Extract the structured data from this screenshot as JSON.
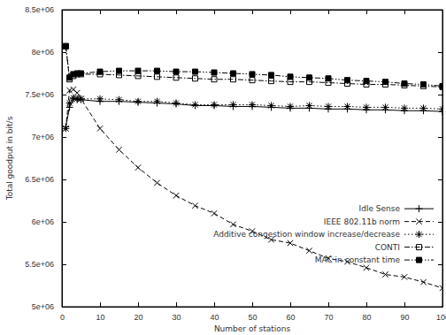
{
  "chart_data": {
    "type": "line",
    "x_label": "Number of stations",
    "y_label": "Total goodput in bit/s",
    "x": [
      1,
      2,
      3,
      4,
      5,
      10,
      15,
      20,
      25,
      30,
      35,
      40,
      45,
      50,
      55,
      60,
      65,
      70,
      75,
      80,
      85,
      90,
      95,
      100
    ],
    "series": [
      {
        "name": "Idle Sense",
        "color": "#000000",
        "marker": "plus",
        "line_style": "solid",
        "values": [
          7120000,
          7350000,
          7450000,
          7440000,
          7440000,
          7420000,
          7420000,
          7410000,
          7400000,
          7390000,
          7370000,
          7370000,
          7360000,
          7360000,
          7350000,
          7340000,
          7340000,
          7330000,
          7330000,
          7320000,
          7320000,
          7310000,
          7310000,
          7300000
        ]
      },
      {
        "name": "IEEE 802.11b norm",
        "color": "#000000",
        "marker": "cross",
        "line_style": "dashed",
        "values": [
          7100000,
          7550000,
          7560000,
          7520000,
          7450000,
          7100000,
          6850000,
          6640000,
          6460000,
          6310000,
          6190000,
          6100000,
          5970000,
          5890000,
          5790000,
          5750000,
          5660000,
          5570000,
          5530000,
          5460000,
          5380000,
          5350000,
          5290000,
          5220000
        ]
      },
      {
        "name": "Additive congestion window increase/decrease",
        "color": "#000000",
        "marker": "star",
        "line_style": "dotted",
        "values": [
          7100000,
          7400000,
          7460000,
          7450000,
          7450000,
          7450000,
          7440000,
          7420000,
          7420000,
          7400000,
          7380000,
          7380000,
          7380000,
          7380000,
          7370000,
          7360000,
          7370000,
          7360000,
          7360000,
          7350000,
          7350000,
          7340000,
          7340000,
          7330000
        ]
      },
      {
        "name": "CONTI",
        "color": "#000000",
        "marker": "square-open",
        "line_style": "dashdot",
        "values": [
          8070000,
          7680000,
          7720000,
          7740000,
          7740000,
          7740000,
          7730000,
          7720000,
          7710000,
          7700000,
          7690000,
          7680000,
          7680000,
          7670000,
          7660000,
          7650000,
          7650000,
          7640000,
          7630000,
          7620000,
          7620000,
          7610000,
          7600000,
          7590000
        ]
      },
      {
        "name": "MAC in constant time",
        "color": "#000000",
        "marker": "square",
        "line_style": "dashdotdot",
        "values": [
          8070000,
          7700000,
          7740000,
          7750000,
          7750000,
          7770000,
          7780000,
          7780000,
          7780000,
          7770000,
          7770000,
          7760000,
          7750000,
          7740000,
          7730000,
          7710000,
          7700000,
          7690000,
          7670000,
          7660000,
          7650000,
          7630000,
          7620000,
          7600000
        ]
      }
    ],
    "xlim": [
      0,
      100
    ],
    "xticks": [
      0,
      10,
      20,
      30,
      40,
      50,
      60,
      70,
      80,
      90,
      100
    ],
    "ylim": [
      5000000,
      8500000
    ],
    "yticks": [
      {
        "value": 5000000,
        "label": "5e+06"
      },
      {
        "value": 5500000,
        "label": "5.5e+06"
      },
      {
        "value": 6000000,
        "label": "6e+06"
      },
      {
        "value": 6500000,
        "label": "6.5e+06"
      },
      {
        "value": 7000000,
        "label": "7e+06"
      },
      {
        "value": 7500000,
        "label": "7.5e+06"
      },
      {
        "value": 8000000,
        "label": "8e+06"
      },
      {
        "value": 8500000,
        "label": "8.5e+06"
      }
    ],
    "grid": false,
    "legend": "right"
  }
}
